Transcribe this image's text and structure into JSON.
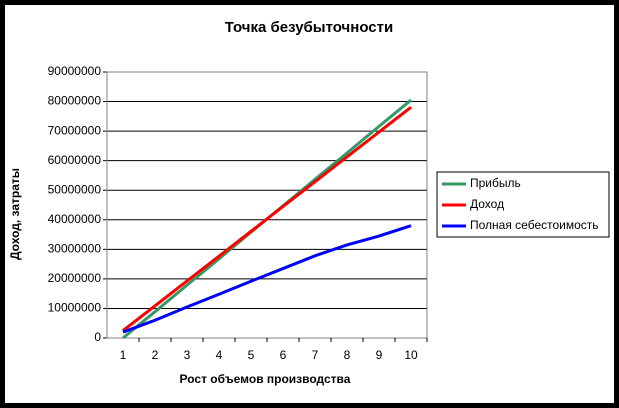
{
  "chart_data": {
    "type": "line",
    "title": "Точка безубыточности",
    "x_label": "Рост объемов производства",
    "y_label": "Доход, затраты",
    "categories": [
      "1",
      "2",
      "3",
      "4",
      "5",
      "6",
      "7",
      "8",
      "9",
      "10"
    ],
    "series": [
      {
        "name": "Прибыль",
        "color": "#339966",
        "values": [
          0,
          8900000,
          17900000,
          26800000,
          35800000,
          44700000,
          53700000,
          62600000,
          71600000,
          80500000
        ]
      },
      {
        "name": "Доход",
        "color": "#ff0000",
        "values": [
          2500000,
          10900000,
          19300000,
          27700000,
          36100000,
          44500000,
          52900000,
          61300000,
          69700000,
          78100000
        ]
      },
      {
        "name": "Полная себестоимость",
        "color": "#0000ff",
        "values": [
          2000000,
          6000000,
          10500000,
          14800000,
          19200000,
          23500000,
          27800000,
          31500000,
          34500000,
          38000000
        ]
      }
    ],
    "ylim": [
      0,
      90000000
    ],
    "yticks": [
      0,
      10000000,
      20000000,
      30000000,
      40000000,
      50000000,
      60000000,
      70000000,
      80000000,
      90000000
    ],
    "grid": true,
    "legend": "right"
  }
}
